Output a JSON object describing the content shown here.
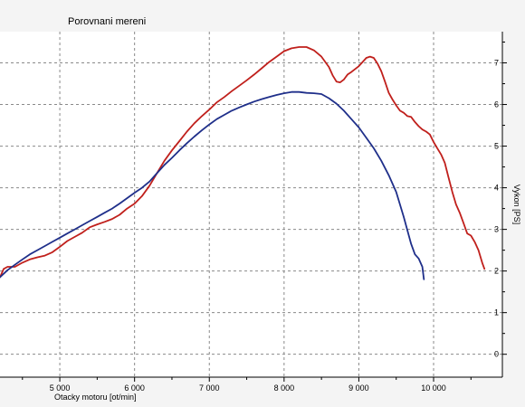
{
  "chart_data": {
    "type": "line",
    "title": "Porovnani mereni",
    "xlabel": "Otacky motoru [ot/min]",
    "ylabel": "Vykon [PS]",
    "xlim": [
      4200,
      10920
    ],
    "ylim": [
      -0.55,
      7.75
    ],
    "x_ticks": [
      5000,
      6000,
      7000,
      8000,
      9000,
      10000
    ],
    "x_tick_labels": [
      "5 000",
      "6 000",
      "7 000",
      "8 000",
      "9 000",
      "10 000"
    ],
    "y_ticks": [
      0,
      1,
      2,
      3,
      4,
      5,
      6,
      7
    ],
    "y_tick_labels": [
      "0",
      "1",
      "2",
      "3",
      "4",
      "5",
      "6",
      "7"
    ],
    "grid": true,
    "colors": {
      "series_red": "#c0201c",
      "series_blue": "#1f2f8a",
      "grid": "#8a8a8a"
    },
    "series": [
      {
        "color": "#c0201c",
        "x": [
          4200,
          4250,
          4300,
          4400,
          4500,
          4600,
          4700,
          4800,
          4900,
          5000,
          5100,
          5200,
          5300,
          5400,
          5500,
          5600,
          5700,
          5800,
          5900,
          6000,
          6100,
          6200,
          6300,
          6400,
          6500,
          6600,
          6700,
          6800,
          6900,
          7000,
          7100,
          7200,
          7300,
          7400,
          7500,
          7600,
          7700,
          7800,
          7900,
          8000,
          8100,
          8200,
          8300,
          8400,
          8500,
          8600,
          8650,
          8700,
          8750,
          8800,
          8850,
          8900,
          9000,
          9100,
          9150,
          9200,
          9250,
          9300,
          9350,
          9400,
          9450,
          9500,
          9550,
          9600,
          9650,
          9700,
          9750,
          9800,
          9850,
          9900,
          9950,
          10000,
          10050,
          10100,
          10150,
          10200,
          10250,
          10300,
          10350,
          10400,
          10450,
          10500,
          10550,
          10600,
          10650,
          10680
        ],
        "y": [
          1.85,
          2.05,
          2.1,
          2.1,
          2.2,
          2.28,
          2.33,
          2.37,
          2.45,
          2.58,
          2.72,
          2.82,
          2.92,
          3.05,
          3.12,
          3.18,
          3.25,
          3.35,
          3.5,
          3.62,
          3.8,
          4.05,
          4.35,
          4.65,
          4.9,
          5.12,
          5.35,
          5.55,
          5.72,
          5.88,
          6.05,
          6.18,
          6.32,
          6.45,
          6.58,
          6.72,
          6.87,
          7.02,
          7.15,
          7.28,
          7.35,
          7.38,
          7.38,
          7.3,
          7.15,
          6.9,
          6.7,
          6.55,
          6.53,
          6.6,
          6.72,
          6.78,
          6.92,
          7.12,
          7.15,
          7.12,
          6.98,
          6.8,
          6.55,
          6.28,
          6.12,
          5.98,
          5.85,
          5.8,
          5.72,
          5.7,
          5.58,
          5.48,
          5.4,
          5.35,
          5.28,
          5.1,
          4.95,
          4.8,
          4.6,
          4.25,
          3.9,
          3.6,
          3.4,
          3.15,
          2.9,
          2.85,
          2.7,
          2.5,
          2.2,
          2.05
        ]
      },
      {
        "color": "#1f2f8a",
        "x": [
          4200,
          4300,
          4400,
          4500,
          4600,
          4700,
          4800,
          4900,
          5000,
          5100,
          5200,
          5300,
          5400,
          5500,
          5600,
          5700,
          5800,
          5900,
          6000,
          6100,
          6200,
          6300,
          6400,
          6500,
          6600,
          6700,
          6800,
          6900,
          7000,
          7100,
          7200,
          7300,
          7400,
          7500,
          7600,
          7700,
          7800,
          7900,
          8000,
          8100,
          8200,
          8300,
          8400,
          8500,
          8600,
          8700,
          8800,
          8900,
          9000,
          9100,
          9200,
          9300,
          9400,
          9500,
          9600,
          9700,
          9750,
          9800,
          9850,
          9870
        ],
        "y": [
          1.85,
          2.02,
          2.15,
          2.28,
          2.4,
          2.5,
          2.6,
          2.7,
          2.8,
          2.9,
          3.0,
          3.1,
          3.2,
          3.3,
          3.4,
          3.5,
          3.62,
          3.75,
          3.88,
          4.0,
          4.15,
          4.35,
          4.55,
          4.72,
          4.9,
          5.07,
          5.23,
          5.38,
          5.52,
          5.65,
          5.75,
          5.85,
          5.93,
          6.0,
          6.07,
          6.13,
          6.18,
          6.23,
          6.27,
          6.3,
          6.3,
          6.28,
          6.27,
          6.25,
          6.15,
          6.02,
          5.85,
          5.65,
          5.45,
          5.2,
          4.95,
          4.65,
          4.3,
          3.9,
          3.3,
          2.65,
          2.4,
          2.3,
          2.1,
          1.8
        ]
      }
    ]
  }
}
